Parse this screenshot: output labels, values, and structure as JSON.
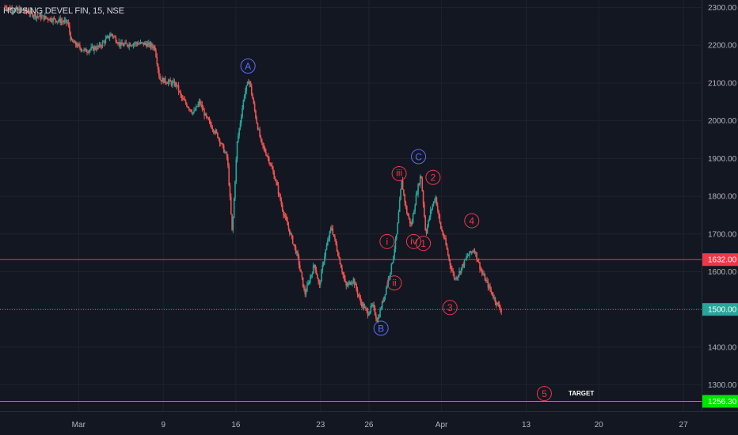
{
  "chart_data": {
    "type": "candlestick",
    "title": "HOUSING DEVEL FIN, 15, NSE",
    "ylim": [
      1230,
      2320
    ],
    "y_ticks": [
      "2300.00",
      "2200.00",
      "2100.00",
      "2000.00",
      "1900.00",
      "1800.00",
      "1700.00",
      "1600.00",
      "1500.00",
      "1400.00",
      "1300.00"
    ],
    "x_ticks": [
      "Mar",
      "9",
      "16",
      "23",
      "26",
      "Apr",
      "13",
      "20",
      "27"
    ],
    "price_lines": [
      {
        "name": "resistance",
        "value": 1632.0,
        "label": "1632.00",
        "color": "#f23645",
        "style": "solid"
      },
      {
        "name": "last-price",
        "value": 1500.0,
        "label": "1500.00",
        "color": "#26a69a",
        "style": "dotted"
      },
      {
        "name": "target",
        "value": 1256.3,
        "label": "1256.30",
        "color": "#00e600",
        "style": "solid"
      }
    ],
    "price_path": [
      [
        0.4,
        2302
      ],
      [
        1.0,
        2296
      ],
      [
        2.2,
        2290
      ],
      [
        3.0,
        2278
      ],
      [
        4.5,
        2268
      ],
      [
        5.6,
        2260
      ],
      [
        5.9,
        2210
      ],
      [
        7.0,
        2185
      ],
      [
        8.2,
        2196
      ],
      [
        9.2,
        2230
      ],
      [
        10.0,
        2200
      ],
      [
        11.0,
        2205
      ],
      [
        12.0,
        2204
      ],
      [
        12.8,
        2195
      ],
      [
        13.2,
        2110
      ],
      [
        14.0,
        2102
      ],
      [
        14.6,
        2095
      ],
      [
        15.0,
        2060
      ],
      [
        15.5,
        2040
      ],
      [
        16.0,
        2020
      ],
      [
        16.5,
        2050
      ],
      [
        17.0,
        2010
      ],
      [
        18.0,
        1960
      ],
      [
        18.8,
        1900
      ],
      [
        19.2,
        1700
      ],
      [
        19.6,
        1940
      ],
      [
        20.2,
        2070
      ],
      [
        20.6,
        2110
      ],
      [
        21.2,
        2000
      ],
      [
        21.6,
        1940
      ],
      [
        22.2,
        1900
      ],
      [
        22.8,
        1840
      ],
      [
        23.4,
        1760
      ],
      [
        24.0,
        1700
      ],
      [
        24.6,
        1640
      ],
      [
        25.2,
        1540
      ],
      [
        25.6,
        1580
      ],
      [
        26.0,
        1620
      ],
      [
        26.4,
        1560
      ],
      [
        26.8,
        1640
      ],
      [
        27.4,
        1720
      ],
      [
        28.0,
        1640
      ],
      [
        28.6,
        1560
      ],
      [
        29.2,
        1580
      ],
      [
        29.8,
        1520
      ],
      [
        30.4,
        1490
      ],
      [
        30.8,
        1510
      ],
      [
        31.2,
        1470
      ],
      [
        31.8,
        1540
      ],
      [
        32.4,
        1620
      ],
      [
        32.8,
        1700
      ],
      [
        33.2,
        1840
      ],
      [
        33.6,
        1760
      ],
      [
        34.0,
        1720
      ],
      [
        34.4,
        1800
      ],
      [
        34.8,
        1860
      ],
      [
        35.2,
        1700
      ],
      [
        35.6,
        1760
      ],
      [
        36.0,
        1800
      ],
      [
        36.4,
        1720
      ],
      [
        36.8,
        1680
      ],
      [
        37.2,
        1620
      ],
      [
        37.6,
        1580
      ],
      [
        38.0,
        1600
      ],
      [
        38.6,
        1640
      ],
      [
        39.2,
        1660
      ],
      [
        39.8,
        1600
      ],
      [
        40.4,
        1560
      ],
      [
        41.0,
        1520
      ],
      [
        41.5,
        1495
      ]
    ],
    "wave_labels": [
      {
        "text": "A",
        "x": 20.5,
        "y": 2145,
        "color": "#5b6cff"
      },
      {
        "text": "B",
        "x": 31.5,
        "y": 1450,
        "color": "#5b6cff"
      },
      {
        "text": "C",
        "x": 34.6,
        "y": 1905,
        "color": "#5b6cff"
      },
      {
        "text": "i",
        "x": 32.0,
        "y": 1680,
        "color": "#f23645"
      },
      {
        "text": "ii",
        "x": 32.6,
        "y": 1570,
        "color": "#f23645"
      },
      {
        "text": "iii",
        "x": 33.0,
        "y": 1860,
        "color": "#f23645"
      },
      {
        "text": "iv",
        "x": 34.2,
        "y": 1680,
        "color": "#f23645"
      },
      {
        "text": "1",
        "x": 35.0,
        "y": 1675,
        "color": "#f23645"
      },
      {
        "text": "2",
        "x": 35.8,
        "y": 1850,
        "color": "#f23645"
      },
      {
        "text": "3",
        "x": 37.2,
        "y": 1505,
        "color": "#f23645"
      },
      {
        "text": "4",
        "x": 39.0,
        "y": 1735,
        "color": "#f23645"
      },
      {
        "text": "5",
        "x": 45.0,
        "y": 1277,
        "color": "#f23645"
      }
    ],
    "annotations": [
      {
        "text": "TARGET",
        "x": 47.0,
        "y": 1278
      }
    ]
  }
}
